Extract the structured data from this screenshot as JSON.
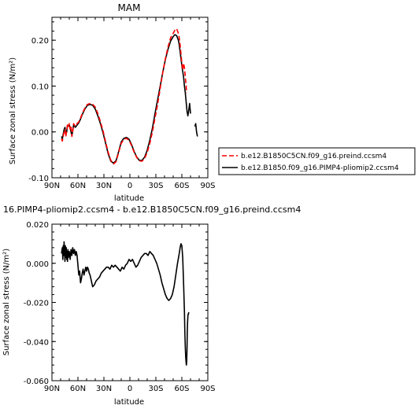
{
  "chart_data": [
    {
      "type": "line",
      "title": "MAM",
      "xlabel": "latitude",
      "ylabel": "Surface zonal stress (N/m²)",
      "xlim": [
        90,
        -90
      ],
      "ylim": [
        -0.1,
        0.25
      ],
      "xtick_values": [
        90,
        60,
        30,
        0,
        -30,
        -60,
        -90
      ],
      "xtick_labels": [
        "90N",
        "60N",
        "30N",
        "0",
        "30S",
        "60S",
        "90S"
      ],
      "ytick_values": [
        -0.1,
        0.0,
        0.1,
        0.2
      ],
      "ytick_labels": [
        "-0.10",
        "0.00",
        "0.10",
        "0.20"
      ],
      "legend_position": "right",
      "series": [
        {
          "name": "b.e12.B1850C5CN.f09_g16.preind.ccsm4",
          "color": "#ff0000",
          "dash": "dashed",
          "x": [
            79,
            78,
            77,
            76,
            75,
            74,
            73,
            72,
            71,
            70,
            69,
            68,
            67,
            66,
            65,
            63,
            61,
            59,
            57,
            55,
            52,
            49,
            46,
            43,
            40,
            37,
            34,
            31,
            28,
            25,
            22,
            19,
            16,
            13,
            10,
            7,
            4,
            1,
            -2,
            -5,
            -8,
            -11,
            -14,
            -17,
            -20,
            -23,
            -26,
            -29,
            -32,
            -35,
            -38,
            -41,
            -44,
            -47,
            -50,
            -52,
            -54,
            -56,
            -57,
            -58,
            -59,
            -60,
            -61,
            -62,
            -63,
            -64,
            -65,
            -65.5
          ],
          "y": [
            -0.015,
            -0.02,
            -0.01,
            0.0,
            0.005,
            -0.01,
            0.002,
            0.018,
            0.012,
            0.018,
            0.006,
            0.013,
            -0.01,
            0.002,
            0.018,
            0.012,
            0.018,
            0.022,
            0.03,
            0.04,
            0.052,
            0.06,
            0.062,
            0.06,
            0.054,
            0.04,
            0.022,
            0.002,
            -0.022,
            -0.045,
            -0.062,
            -0.07,
            -0.065,
            -0.045,
            -0.025,
            -0.016,
            -0.014,
            -0.018,
            -0.03,
            -0.045,
            -0.056,
            -0.063,
            -0.064,
            -0.058,
            -0.045,
            -0.025,
            0.0,
            0.03,
            0.06,
            0.095,
            0.13,
            0.16,
            0.185,
            0.205,
            0.215,
            0.222,
            0.225,
            0.215,
            0.205,
            0.19,
            0.17,
            0.15,
            0.135,
            0.15,
            0.14,
            0.12,
            0.1,
            0.085
          ]
        },
        {
          "name": "b.e12.B1850.f09_g16.PIMP4-pliomip2.ccsm4",
          "color": "#000000",
          "dash": "solid",
          "x": [
            79,
            78,
            77,
            76,
            75,
            74,
            73,
            72,
            71,
            70,
            69,
            68,
            67,
            66,
            65,
            63,
            61,
            59,
            57,
            55,
            52,
            49,
            46,
            43,
            40,
            37,
            34,
            31,
            28,
            25,
            22,
            19,
            16,
            13,
            10,
            7,
            4,
            1,
            -2,
            -5,
            -8,
            -11,
            -14,
            -17,
            -20,
            -23,
            -26,
            -29,
            -32,
            -35,
            -38,
            -41,
            -44,
            -47,
            -50,
            -52,
            -54,
            -56,
            -57,
            -58,
            -59,
            -60,
            -61,
            -62,
            -63,
            -64,
            -65,
            -66,
            -67,
            -68,
            -69,
            -70
          ],
          "y": [
            -0.01,
            -0.015,
            -0.005,
            0.005,
            0.01,
            -0.005,
            0.0,
            0.015,
            0.012,
            0.015,
            0.01,
            0.0,
            -0.008,
            0.002,
            0.015,
            0.01,
            0.015,
            0.02,
            0.028,
            0.038,
            0.05,
            0.058,
            0.06,
            0.058,
            0.05,
            0.035,
            0.018,
            -0.002,
            -0.025,
            -0.048,
            -0.064,
            -0.068,
            -0.063,
            -0.043,
            -0.022,
            -0.014,
            -0.012,
            -0.016,
            -0.028,
            -0.043,
            -0.055,
            -0.062,
            -0.062,
            -0.055,
            -0.04,
            -0.018,
            0.008,
            0.04,
            0.07,
            0.1,
            0.13,
            0.158,
            0.18,
            0.198,
            0.208,
            0.212,
            0.21,
            0.2,
            0.19,
            0.175,
            0.16,
            0.145,
            0.132,
            0.12,
            0.1,
            0.085,
            0.065,
            0.045,
            0.035,
            0.048,
            0.062,
            0.04
          ]
        },
        {
          "name": "",
          "color": "#000000",
          "dash": "solid",
          "x": [
            -75,
            -76,
            -77,
            -78
          ],
          "y": [
            0.012,
            0.018,
            0.0,
            -0.01
          ]
        }
      ]
    },
    {
      "type": "line",
      "title": "16.PIMP4-pliomip2.ccsm4 - b.e12.B1850C5CN.f09_g16.preind.ccsm4",
      "xlabel": "latitude",
      "ylabel": "Surface zonal stress (N/m²)",
      "xlim": [
        90,
        -90
      ],
      "ylim": [
        -0.06,
        0.02
      ],
      "xtick_values": [
        90,
        60,
        30,
        0,
        -30,
        -60,
        -90
      ],
      "xtick_labels": [
        "90N",
        "60N",
        "30N",
        "0",
        "30S",
        "60S",
        "90S"
      ],
      "ytick_values": [
        -0.06,
        -0.04,
        -0.02,
        0.0,
        0.02
      ],
      "ytick_labels": [
        "-0.060",
        "-0.040",
        "-0.020",
        "0.000",
        "0.020"
      ],
      "series": [
        {
          "name": "",
          "color": "#000000",
          "dash": "solid",
          "x": [
            79,
            78,
            77.5,
            77,
            76.5,
            76,
            75.5,
            75,
            74.5,
            74,
            73.5,
            73,
            72.5,
            72,
            71.5,
            71,
            70,
            69,
            68,
            67,
            66,
            65,
            64,
            63,
            62,
            61,
            60,
            59,
            58,
            57,
            56,
            55,
            54,
            53,
            52,
            51,
            50,
            49,
            48,
            47,
            46,
            45,
            44,
            43,
            41,
            39,
            37,
            35,
            33,
            31,
            29,
            27,
            25,
            23,
            21,
            19,
            17,
            15,
            13,
            11,
            9,
            7,
            5,
            3,
            1,
            -1,
            -3,
            -5,
            -7,
            -9,
            -11,
            -13,
            -15,
            -17,
            -19,
            -21,
            -23,
            -25,
            -27,
            -29,
            -31,
            -33,
            -35,
            -37,
            -39,
            -41,
            -43,
            -45,
            -47,
            -49,
            -51,
            -53,
            -55,
            -57,
            -58,
            -59,
            -60,
            -61,
            -62,
            -63,
            -63.5,
            -64,
            -64.5,
            -65,
            -65.3,
            -65.6,
            -66,
            -66.3,
            -66.6,
            -67,
            -67.3,
            -67.6,
            -68
          ],
          "y": [
            0.005,
            0.008,
            0.002,
            0.009,
            0.004,
            0.011,
            0.006,
            0.001,
            0.009,
            0.003,
            0.008,
            0.002,
            0.006,
            0.001,
            0.007,
            0.003,
            0.006,
            0.002,
            0.007,
            0.004,
            0.008,
            0.005,
            0.007,
            0.004,
            0.006,
            0.004,
            -0.001,
            -0.006,
            -0.004,
            -0.01,
            -0.008,
            -0.005,
            -0.003,
            -0.006,
            -0.004,
            -0.002,
            -0.004,
            -0.002,
            -0.003,
            -0.005,
            -0.006,
            -0.008,
            -0.01,
            -0.012,
            -0.011,
            -0.009,
            -0.008,
            -0.007,
            -0.005,
            -0.004,
            -0.003,
            -0.002,
            -0.002,
            -0.003,
            -0.001,
            -0.002,
            -0.001,
            -0.002,
            -0.003,
            -0.004,
            -0.002,
            -0.003,
            -0.001,
            0.0,
            0.002,
            0.001,
            0.002,
            0.0,
            -0.002,
            -0.001,
            0.001,
            0.003,
            0.004,
            0.005,
            0.005,
            0.004,
            0.006,
            0.005,
            0.004,
            0.002,
            0.0,
            -0.003,
            -0.006,
            -0.01,
            -0.013,
            -0.016,
            -0.018,
            -0.019,
            -0.018,
            -0.016,
            -0.012,
            -0.006,
            0.0,
            0.005,
            0.008,
            0.01,
            0.009,
            0.003,
            -0.01,
            -0.025,
            -0.035,
            -0.043,
            -0.048,
            -0.051,
            -0.052,
            -0.05,
            -0.043,
            -0.035,
            -0.03,
            -0.027,
            -0.026,
            -0.026,
            -0.025
          ]
        }
      ]
    }
  ]
}
